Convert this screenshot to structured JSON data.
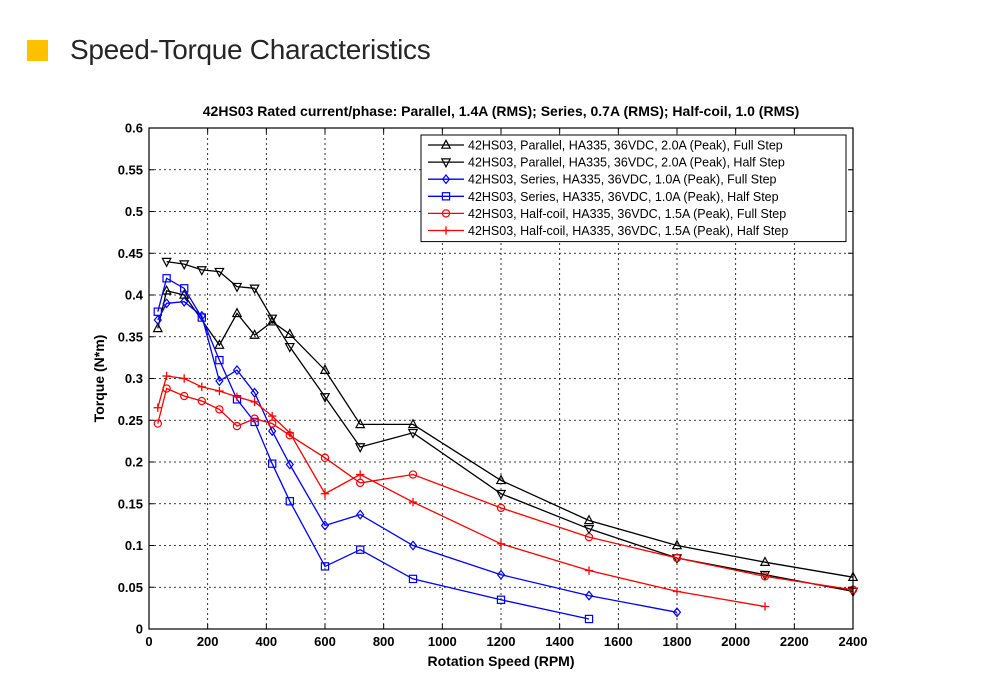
{
  "header": {
    "title": "Speed-Torque Characteristics",
    "accent_color": "#FFC000"
  },
  "chart_data": {
    "type": "line",
    "title": "42HS03 Rated current/phase: Parallel, 1.4A (RMS); Series, 0.7A (RMS); Half-coil, 1.0 (RMS)",
    "xlabel": "Rotation Speed (RPM)",
    "ylabel": "Torque (N*m)",
    "xlim": [
      0,
      2400
    ],
    "ylim": [
      0,
      0.6
    ],
    "xticks": [
      0,
      200,
      400,
      600,
      800,
      1000,
      1200,
      1400,
      1600,
      1800,
      2000,
      2200,
      2400
    ],
    "yticks": [
      0,
      0.05,
      0.1,
      0.15,
      0.2,
      0.25,
      0.3,
      0.35,
      0.4,
      0.45,
      0.5,
      0.55,
      0.6
    ],
    "ytick_labels": [
      "0",
      "0.05",
      "0.1",
      "0.15",
      "0.2",
      "0.25",
      "0.3",
      "0.35",
      "0.4",
      "0.45",
      "0.5",
      "0.55",
      "0.6"
    ],
    "grid": true,
    "legend_position": "top-right",
    "series": [
      {
        "name": "42HS03, Parallel, HA335, 36VDC, 2.0A (Peak), Full Step",
        "color": "#000000",
        "marker": "triangle-up",
        "x": [
          30,
          60,
          120,
          240,
          300,
          360,
          420,
          480,
          600,
          720,
          900,
          1200,
          1500,
          1800,
          2100,
          2400
        ],
        "y": [
          0.36,
          0.405,
          0.4,
          0.34,
          0.378,
          0.352,
          0.368,
          0.353,
          0.31,
          0.245,
          0.245,
          0.178,
          0.13,
          0.1,
          0.08,
          0.062
        ]
      },
      {
        "name": "42HS03, Parallel, HA335, 36VDC, 2.0A (Peak), Half Step",
        "color": "#000000",
        "marker": "triangle-down",
        "x": [
          60,
          120,
          180,
          240,
          300,
          360,
          420,
          480,
          600,
          720,
          900,
          1200,
          1500,
          1800,
          2100,
          2400
        ],
        "y": [
          0.44,
          0.437,
          0.43,
          0.428,
          0.41,
          0.408,
          0.372,
          0.338,
          0.278,
          0.218,
          0.235,
          0.162,
          0.12,
          0.085,
          0.065,
          0.045
        ]
      },
      {
        "name": "42HS03, Series, HA335, 36VDC, 1.0A (Peak), Full Step",
        "color": "#0000FF",
        "marker": "diamond",
        "x": [
          30,
          60,
          120,
          180,
          240,
          300,
          360,
          420,
          480,
          600,
          720,
          900,
          1200,
          1500,
          1800
        ],
        "y": [
          0.37,
          0.39,
          0.392,
          0.375,
          0.297,
          0.31,
          0.283,
          0.237,
          0.197,
          0.124,
          0.137,
          0.1,
          0.065,
          0.04,
          0.02
        ]
      },
      {
        "name": "42HS03, Series, HA335, 36VDC, 1.0A (Peak), Half Step",
        "color": "#0000FF",
        "marker": "square",
        "x": [
          30,
          60,
          120,
          180,
          240,
          300,
          360,
          420,
          480,
          600,
          720,
          900,
          1200,
          1500
        ],
        "y": [
          0.38,
          0.42,
          0.408,
          0.373,
          0.322,
          0.275,
          0.248,
          0.198,
          0.153,
          0.075,
          0.095,
          0.06,
          0.035,
          0.012
        ]
      },
      {
        "name": "42HS03, Half-coil, HA335, 36VDC, 1.5A (Peak), Full Step",
        "color": "#FF0000",
        "marker": "circle",
        "x": [
          30,
          60,
          120,
          180,
          240,
          300,
          360,
          420,
          480,
          600,
          720,
          900,
          1200,
          1500,
          1800,
          2100,
          2400
        ],
        "y": [
          0.246,
          0.288,
          0.279,
          0.273,
          0.263,
          0.243,
          0.252,
          0.246,
          0.232,
          0.205,
          0.175,
          0.185,
          0.145,
          0.11,
          0.085,
          0.063,
          0.047
        ]
      },
      {
        "name": "42HS03, Half-coil, HA335, 36VDC, 1.5A (Peak), Half Step",
        "color": "#FF0000",
        "marker": "plus",
        "x": [
          30,
          60,
          120,
          180,
          240,
          300,
          360,
          420,
          480,
          600,
          720,
          900,
          1200,
          1500,
          1800,
          2100
        ],
        "y": [
          0.265,
          0.303,
          0.3,
          0.29,
          0.285,
          0.278,
          0.272,
          0.255,
          0.235,
          0.162,
          0.185,
          0.152,
          0.102,
          0.07,
          0.045,
          0.027
        ]
      }
    ]
  }
}
